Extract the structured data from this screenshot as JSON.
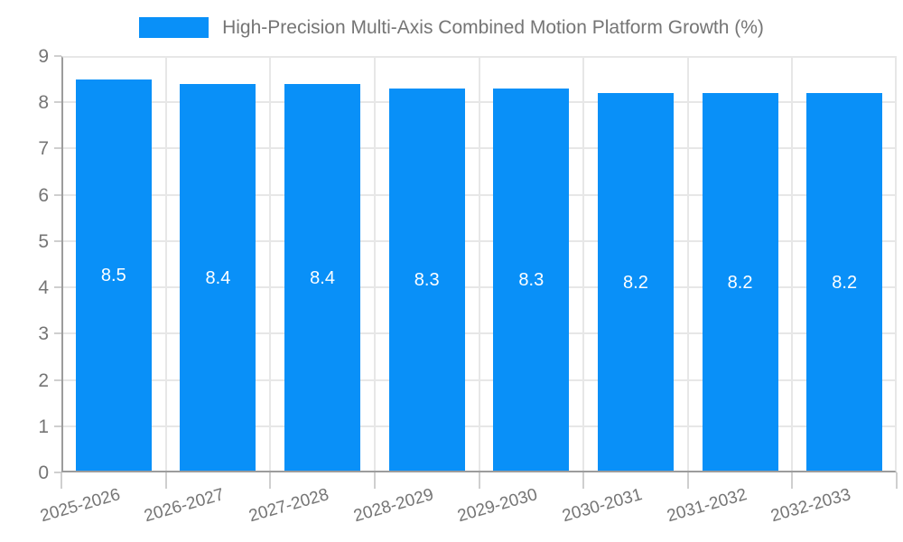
{
  "chart_data": {
    "type": "bar",
    "title": "High-Precision Multi-Axis Combined Motion Platform Growth (%)",
    "categories": [
      "2025-2026",
      "2026-2027",
      "2027-2028",
      "2028-2029",
      "2029-2030",
      "2030-2031",
      "2031-2032",
      "2032-2033"
    ],
    "values": [
      8.5,
      8.4,
      8.4,
      8.3,
      8.3,
      8.2,
      8.2,
      8.2
    ],
    "value_labels": [
      "8.5",
      "8.4",
      "8.4",
      "8.3",
      "8.3",
      "8.2",
      "8.2",
      "8.2"
    ],
    "xlabel": "",
    "ylabel": "",
    "ylim": [
      0,
      9
    ],
    "ytick_labels": [
      "0",
      "1",
      "2",
      "3",
      "4",
      "5",
      "6",
      "7",
      "8",
      "9"
    ],
    "grid": true,
    "legend_position": "top-center",
    "colors": {
      "bar": "#0990f8",
      "grid": "#e7e7e7",
      "axis": "#9c9c9c",
      "tick_mark": "#cfcfcf",
      "tick_text": "#757575",
      "title_text": "#757575",
      "value_text": "#ffffff"
    }
  }
}
